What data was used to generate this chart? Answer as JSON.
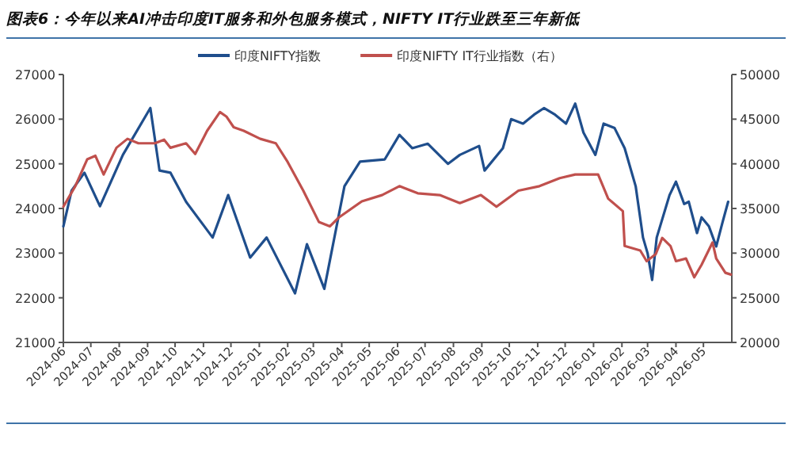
{
  "chart_data": {
    "type": "line",
    "title": "图表6：今年以来AI冲击印度IT服务和外包服务模式，NIFTY IT行业跌至三年新低",
    "xlim": [
      "2024-06",
      "2026-06"
    ],
    "xticks": [
      "2024-06",
      "2024-07",
      "2024-08",
      "2024-09",
      "2024-10",
      "2024-11",
      "2024-12",
      "2025-01",
      "2025-02",
      "2025-03",
      "2025-04",
      "2025-05",
      "2025-06",
      "2025-07",
      "2025-08",
      "2025-09",
      "2025-10",
      "2025-11",
      "2025-12",
      "2026-01",
      "2026-02",
      "2026-03",
      "2026-04",
      "2026-05"
    ],
    "ylim": [
      21000,
      27000
    ],
    "yticks": [
      21000,
      22000,
      23000,
      24000,
      25000,
      26000,
      27000
    ],
    "y2lim": [
      20000,
      50000
    ],
    "y2ticks": [
      20000,
      25000,
      30000,
      35000,
      40000,
      45000,
      50000
    ],
    "grid": false,
    "legend": "top",
    "series": [
      {
        "name": "印度NIFTY指数",
        "color": "#1f4e8c",
        "axis": "y",
        "x": [
          "2024-06-01",
          "2024-06-10",
          "2024-06-24",
          "2024-07-11",
          "2024-08-05",
          "2024-09-04",
          "2024-09-14",
          "2024-09-26",
          "2024-10-13",
          "2024-11-11",
          "2024-11-28",
          "2024-12-22",
          "2025-01-09",
          "2025-02-09",
          "2025-02-22",
          "2025-03-13",
          "2025-04-04",
          "2025-04-21",
          "2025-05-18",
          "2025-06-03",
          "2025-06-17",
          "2025-07-04",
          "2025-07-26",
          "2025-08-08",
          "2025-08-29",
          "2025-09-04",
          "2025-09-24",
          "2025-10-03",
          "2025-10-16",
          "2025-10-28",
          "2025-11-08",
          "2025-11-20",
          "2025-12-02",
          "2025-12-12",
          "2025-12-21",
          "2026-01-03",
          "2026-01-12",
          "2026-01-24",
          "2026-02-04",
          "2026-02-16",
          "2026-02-24",
          "2026-03-01",
          "2026-03-06",
          "2026-03-11",
          "2026-03-25",
          "2026-04-01",
          "2026-04-10",
          "2026-04-15",
          "2026-04-24",
          "2026-04-29",
          "2026-05-07",
          "2026-05-15",
          "2026-05-22",
          "2026-05-28"
        ],
        "values": [
          23600,
          24400,
          24800,
          24050,
          25200,
          26250,
          24850,
          24800,
          24150,
          23350,
          24300,
          22900,
          23350,
          22100,
          23200,
          22200,
          24500,
          25050,
          25100,
          25650,
          25350,
          25450,
          25000,
          25200,
          25400,
          24850,
          25350,
          26000,
          25900,
          26100,
          26250,
          26100,
          25900,
          26350,
          25700,
          25200,
          25900,
          25800,
          25350,
          24500,
          23350,
          23000,
          22400,
          23350,
          24300,
          24600,
          24100,
          24150,
          23450,
          23800,
          23600,
          23150,
          23700,
          24150
        ]
      },
      {
        "name": "印度NIFTY IT行业指数（右）",
        "color": "#c0504d",
        "axis": "y2",
        "x": [
          "2024-06-01",
          "2024-06-14",
          "2024-06-27",
          "2024-07-06",
          "2024-07-15",
          "2024-07-29",
          "2024-08-10",
          "2024-08-22",
          "2024-09-09",
          "2024-09-19",
          "2024-09-26",
          "2024-10-13",
          "2024-10-23",
          "2024-11-05",
          "2024-11-19",
          "2024-11-26",
          "2024-12-04",
          "2024-12-15",
          "2025-01-02",
          "2025-01-19",
          "2025-02-01",
          "2025-02-18",
          "2025-03-07",
          "2025-03-19",
          "2025-03-29",
          "2025-04-23",
          "2025-05-15",
          "2025-06-03",
          "2025-06-23",
          "2025-07-17",
          "2025-08-08",
          "2025-08-31",
          "2025-09-17",
          "2025-10-11",
          "2025-11-03",
          "2025-11-25",
          "2025-12-12",
          "2026-01-06",
          "2026-01-17",
          "2026-02-02",
          "2026-02-04",
          "2026-02-21",
          "2026-02-28",
          "2026-03-10",
          "2026-03-17",
          "2026-03-26",
          "2026-04-01",
          "2026-04-12",
          "2026-04-21",
          "2026-04-29",
          "2026-05-11",
          "2026-05-15",
          "2026-05-25",
          "2026-05-31"
        ],
        "values": [
          35200,
          37500,
          40500,
          40900,
          38800,
          41800,
          42800,
          42300,
          42300,
          42700,
          41800,
          42300,
          41100,
          43700,
          45800,
          45300,
          44100,
          43700,
          42800,
          42300,
          40200,
          37000,
          33500,
          33000,
          34000,
          35800,
          36500,
          37500,
          36700,
          36500,
          35600,
          36500,
          35200,
          37000,
          37500,
          38400,
          38800,
          38800,
          36100,
          34700,
          30800,
          30300,
          29100,
          29900,
          31700,
          30800,
          29100,
          29400,
          27300,
          28700,
          31200,
          29400,
          27800,
          27600
        ]
      }
    ]
  }
}
